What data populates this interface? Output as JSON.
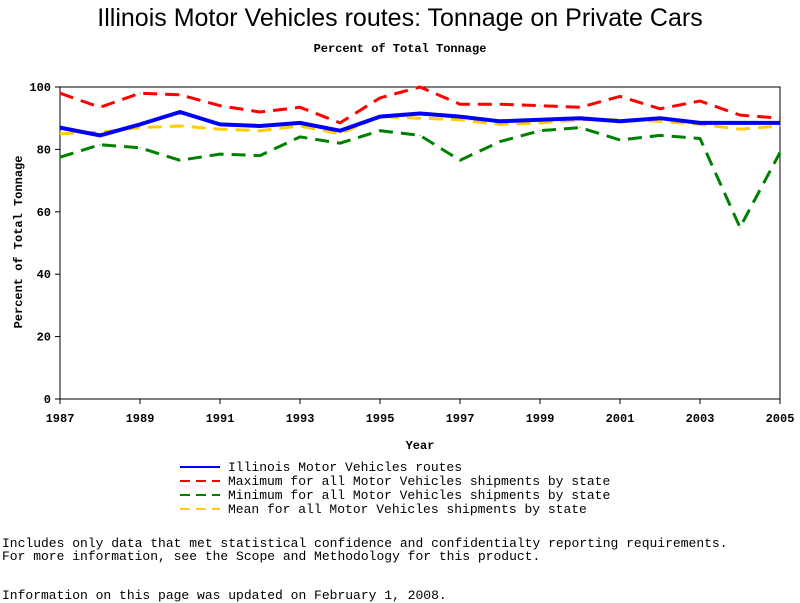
{
  "chart_data": {
    "type": "line",
    "title": "Illinois Motor Vehicles routes: Tonnage on Private Cars",
    "subtitle": "Percent of Total Tonnage",
    "xlabel": "Year",
    "ylabel": "Percent of Total Tonnage",
    "ylim": [
      0,
      100
    ],
    "xlim": [
      1987,
      2005
    ],
    "yticks": [
      0,
      20,
      40,
      60,
      80,
      100
    ],
    "xticks": [
      1987,
      1989,
      1991,
      1993,
      1995,
      1997,
      1999,
      2001,
      2003,
      2005
    ],
    "grid": false,
    "legend_position": "bottom",
    "x": [
      1987,
      1988,
      1989,
      1990,
      1991,
      1992,
      1993,
      1994,
      1995,
      1996,
      1997,
      1998,
      1999,
      2000,
      2001,
      2002,
      2003,
      2004,
      2005
    ],
    "series": [
      {
        "name": "Illinois Motor Vehicles routes",
        "color": "#0000ff",
        "dash": "solid",
        "values": [
          87,
          84.5,
          88,
          92,
          88,
          87.5,
          88.5,
          86,
          90.5,
          91.5,
          90.5,
          89,
          89.5,
          90,
          89,
          90,
          88.5,
          88.5,
          88.5
        ]
      },
      {
        "name": "Maximum for all Motor Vehicles shipments by state",
        "color": "#ff0000",
        "dash": "dashed",
        "values": [
          98,
          93.5,
          98,
          97.5,
          94,
          92,
          93.5,
          88.5,
          96.5,
          100,
          94.5,
          94.5,
          94,
          93.5,
          97,
          93,
          95.5,
          91,
          90
        ]
      },
      {
        "name": "Minimum for all Motor Vehicles shipments by state",
        "color": "#008000",
        "dash": "dashed",
        "values": [
          77.5,
          81.5,
          80.5,
          76.5,
          78.5,
          78,
          84,
          82,
          86,
          84.5,
          76.5,
          82.5,
          86,
          87,
          83,
          84.5,
          83.5,
          55,
          79
        ]
      },
      {
        "name": "Mean for all Motor Vehicles shipments by state",
        "color": "#ffcc00",
        "dash": "dashed",
        "values": [
          85,
          85.5,
          87,
          87.5,
          86.5,
          86,
          87.5,
          85,
          90.5,
          90,
          89.5,
          88,
          88.5,
          89.5,
          89.5,
          89,
          88,
          86.5,
          87.5
        ]
      }
    ]
  },
  "footnotes": {
    "line1": "Includes only data that met statistical confidence and confidentialty reporting requirements.",
    "line2": "For more information, see the Scope and Methodology for this product.",
    "line3": "Information on this page was updated on February 1, 2008."
  }
}
